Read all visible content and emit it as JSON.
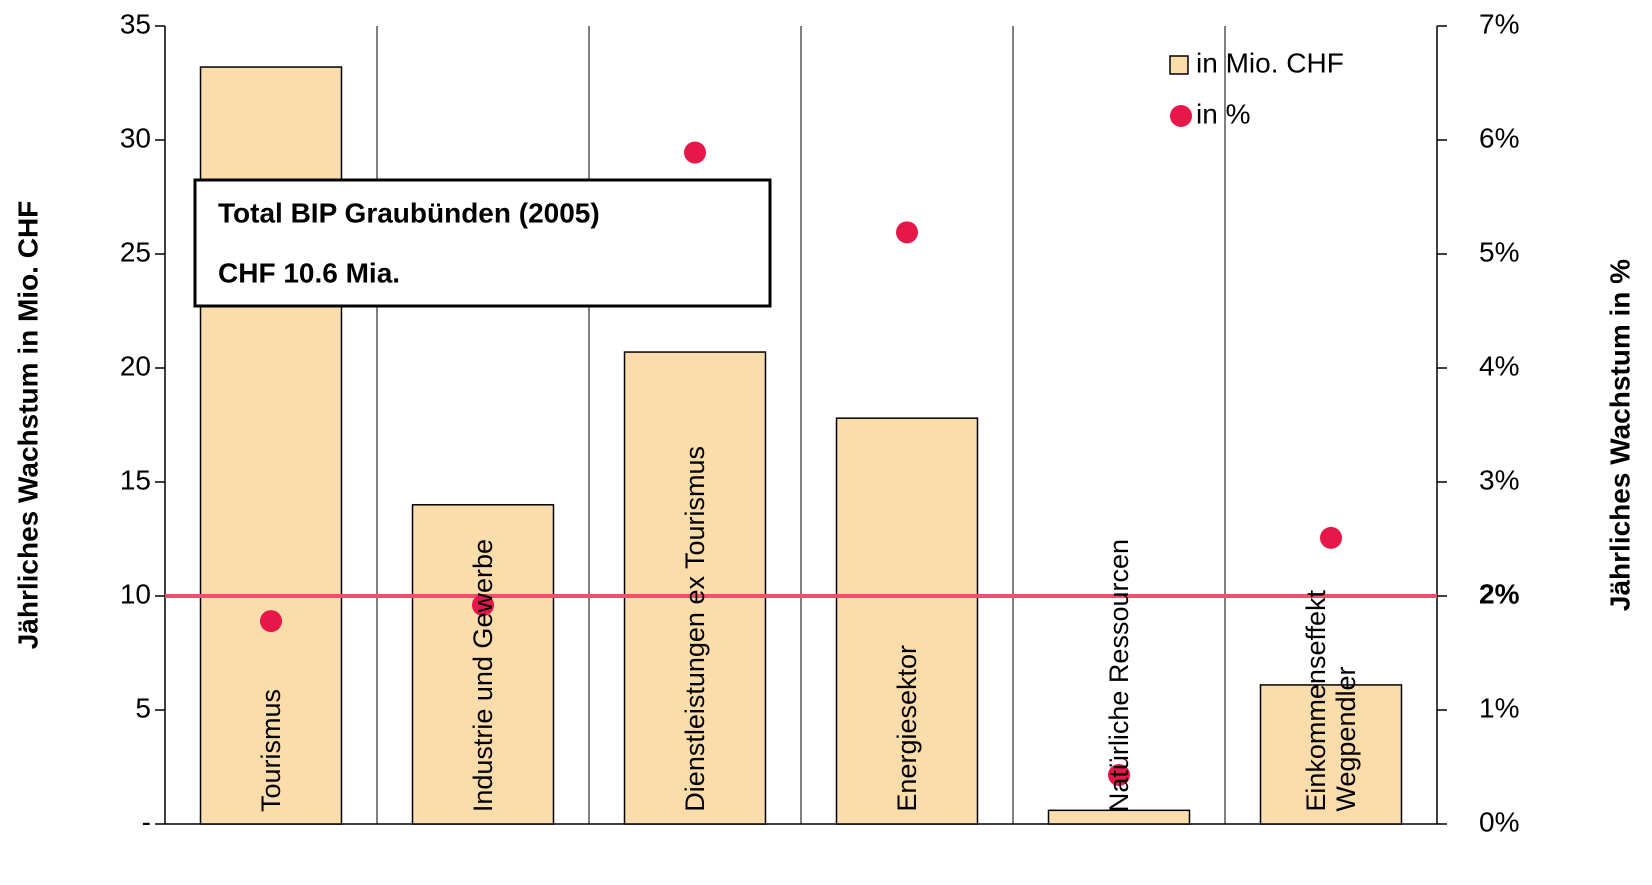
{
  "chart_data": {
    "type": "bar",
    "categories": [
      "Tourismus",
      "Industrie und Gewerbe",
      "Dienstleistungen ex Tourismus",
      "Energiesektor",
      "Natürliche Ressourcen",
      "Einkommenseffekt\nWegpendler"
    ],
    "series": [
      {
        "name": "in Mio. CHF",
        "type": "bar",
        "color": "#fbdcab",
        "values": [
          33.2,
          14.0,
          20.7,
          17.8,
          0.6,
          6.1
        ]
      },
      {
        "name": "in %",
        "type": "scatter",
        "axis": "y2",
        "color": "#e8174a",
        "values": [
          1.78,
          1.92,
          5.89,
          5.19,
          0.43,
          2.51
        ]
      }
    ],
    "ylabel": "Jährliches Wachstum in Mio. CHF",
    "y2label": "Jährliches Wachstum in %",
    "ylim": [
      0,
      35
    ],
    "yticks": [
      {
        "value": 0,
        "label": "-"
      },
      5,
      10,
      15,
      20,
      25,
      30,
      35
    ],
    "y2lim": [
      0,
      7
    ],
    "y2ticks": [
      {
        "value": 0,
        "label": "0%"
      },
      {
        "value": 1,
        "label": "1%"
      },
      {
        "value": 2,
        "label": "2%"
      },
      {
        "value": 3,
        "label": "3%"
      },
      {
        "value": 4,
        "label": "4%"
      },
      {
        "value": 5,
        "label": "5%"
      },
      {
        "value": 6,
        "label": "6%"
      },
      {
        "value": 7,
        "label": "7%"
      }
    ],
    "reference_line": {
      "value": 2,
      "axis": "y2",
      "label": "2%",
      "color": "#f0506e"
    },
    "annotation": [
      "Total BIP Graubünden (2005)",
      "CHF 10.6 Mia."
    ],
    "grid": true,
    "legend": "upper right"
  }
}
